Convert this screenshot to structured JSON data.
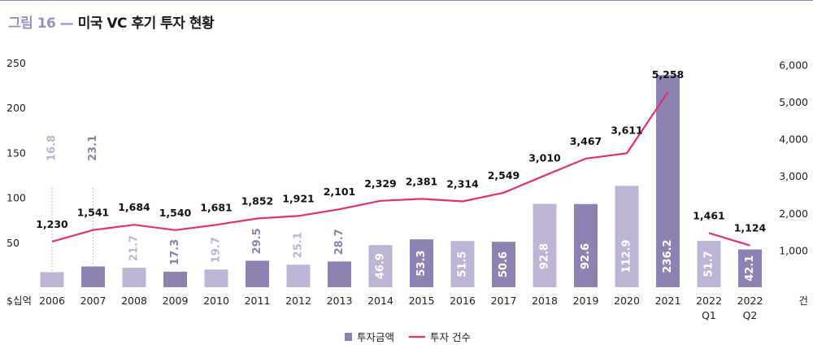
{
  "figure": {
    "label": "그림 16",
    "dash": "—",
    "title": "미국 VC 후기 투자 현황"
  },
  "chart_data": {
    "type": "bar+line",
    "categories": [
      "2006",
      "2007",
      "2008",
      "2009",
      "2010",
      "2011",
      "2012",
      "2013",
      "2014",
      "2015",
      "2016",
      "2017",
      "2018",
      "2019",
      "2020",
      "2021",
      "2022\nQ1",
      "2022\nQ2"
    ],
    "category_lines": [
      [
        "2006"
      ],
      [
        "2007"
      ],
      [
        "2008"
      ],
      [
        "2009"
      ],
      [
        "2010"
      ],
      [
        "2011"
      ],
      [
        "2012"
      ],
      [
        "2013"
      ],
      [
        "2014"
      ],
      [
        "2015"
      ],
      [
        "2016"
      ],
      [
        "2017"
      ],
      [
        "2018"
      ],
      [
        "2019"
      ],
      [
        "2020"
      ],
      [
        "2021"
      ],
      [
        "2022",
        "Q1"
      ],
      [
        "2022",
        "Q2"
      ]
    ],
    "bars": {
      "name": "투자금액",
      "axis": "left",
      "values": [
        16.8,
        23.1,
        21.7,
        17.3,
        19.7,
        29.5,
        25.1,
        28.7,
        46.9,
        53.3,
        51.5,
        50.6,
        92.8,
        92.6,
        112.9,
        236.2,
        51.7,
        42.1
      ],
      "labels": [
        "16.8",
        "23.1",
        "21.7",
        "17.3",
        "19.7",
        "29.5",
        "25.1",
        "28.7",
        "46.9",
        "53.3",
        "51.5",
        "50.6",
        "92.8",
        "92.6",
        "112.9",
        "236.2",
        "51.7",
        "42.1"
      ],
      "shade": [
        "light",
        "dark",
        "light",
        "dark",
        "light",
        "dark",
        "light",
        "dark",
        "light",
        "dark",
        "light",
        "dark",
        "light",
        "dark",
        "light",
        "dark",
        "light",
        "dark"
      ]
    },
    "line": {
      "name": "투자 건수",
      "axis": "right",
      "values": [
        1230,
        1541,
        1684,
        1540,
        1681,
        1852,
        1921,
        2101,
        2329,
        2381,
        2314,
        2549,
        3010,
        3467,
        3611,
        5258,
        1461,
        1124
      ],
      "labels": [
        "1,230",
        "1,541",
        "1,684",
        "1,540",
        "1,681",
        "1,852",
        "1,921",
        "2,101",
        "2,329",
        "2,381",
        "2,314",
        "2,549",
        "3,010",
        "3,467",
        "3,611",
        "5,258",
        "1,461",
        "1,124"
      ],
      "break_before_index": 16
    },
    "y_left": {
      "unit_label": "$십억",
      "ticks": [
        "50",
        "100",
        "150",
        "200",
        "250"
      ],
      "range": [
        0,
        250
      ]
    },
    "y_right": {
      "unit_label": "건",
      "ticks": [
        "1,000",
        "2,000",
        "3,000",
        "4,000",
        "5,000",
        "6,000"
      ],
      "range": [
        0,
        6000
      ]
    },
    "legend": {
      "position": "bottom-center",
      "entries": [
        "투자금액",
        "투자 건수"
      ]
    },
    "colors": {
      "bar_light": "#bdb4d6",
      "bar_dark": "#8e82b3",
      "line": "#e0326e",
      "label_on_light": "#ffffff",
      "label_on_dark": "#ffffff",
      "label_above_light": "#bdb4d6",
      "label_above_dark": "#8e82b3",
      "guide": "#bdb4d6"
    },
    "grid": false
  }
}
